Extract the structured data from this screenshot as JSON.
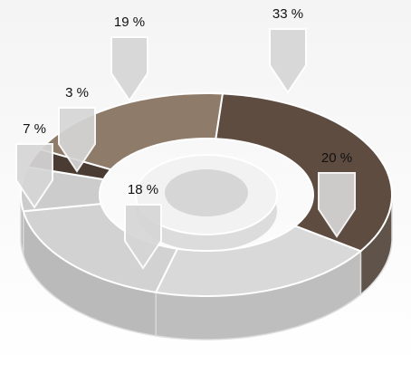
{
  "chart_data": {
    "type": "pie",
    "values": [
      33,
      20,
      18,
      7,
      3,
      19
    ],
    "value_labels": [
      "33 %",
      "20 %",
      "18 %",
      "7 %",
      "3 %",
      "19 %"
    ],
    "colors": [
      "#5e4c40",
      "#d9d9d9",
      "#d2d2d2",
      "#cccccc",
      "#4a3c32",
      "#8e7b69"
    ]
  }
}
